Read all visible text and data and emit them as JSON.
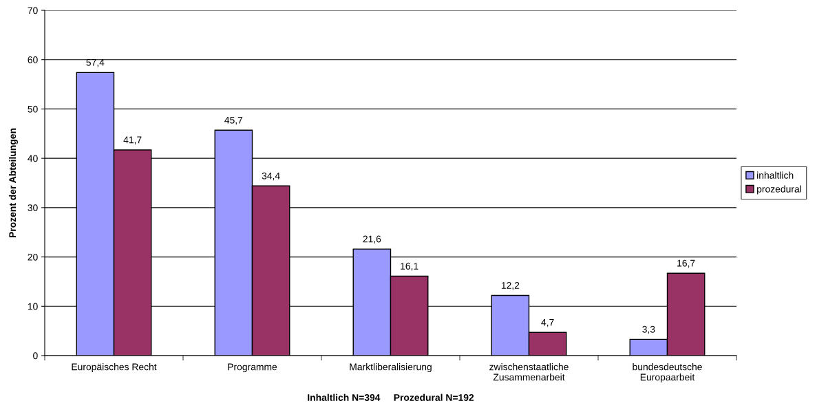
{
  "chart_data": {
    "type": "bar",
    "categories": [
      "Europäisches Recht",
      "Programme",
      "Marktliberalisierung",
      "zwischenstaatliche\nZusammenarbeit",
      "bundesdeutsche\nEuropaarbeit"
    ],
    "series": [
      {
        "name": "inhaltlich",
        "color": "#9999ff",
        "values": [
          57.4,
          45.7,
          21.6,
          12.2,
          3.3
        ],
        "value_labels": [
          "57,4",
          "45,7",
          "21,6",
          "12,2",
          "3,3"
        ]
      },
      {
        "name": "prozedural",
        "color": "#993366",
        "values": [
          41.7,
          34.4,
          16.1,
          4.7,
          16.7
        ],
        "value_labels": [
          "41,7",
          "34,4",
          "16,1",
          "4,7",
          "16,7"
        ]
      }
    ],
    "xlabel": "Inhaltlich N=394     Prozedural N=192",
    "ylabel": "Prozent der Abteilungen",
    "ylim": [
      0,
      70
    ],
    "yticks": [
      0,
      10,
      20,
      30,
      40,
      50,
      60,
      70
    ],
    "grid": "y",
    "legend": "right"
  }
}
